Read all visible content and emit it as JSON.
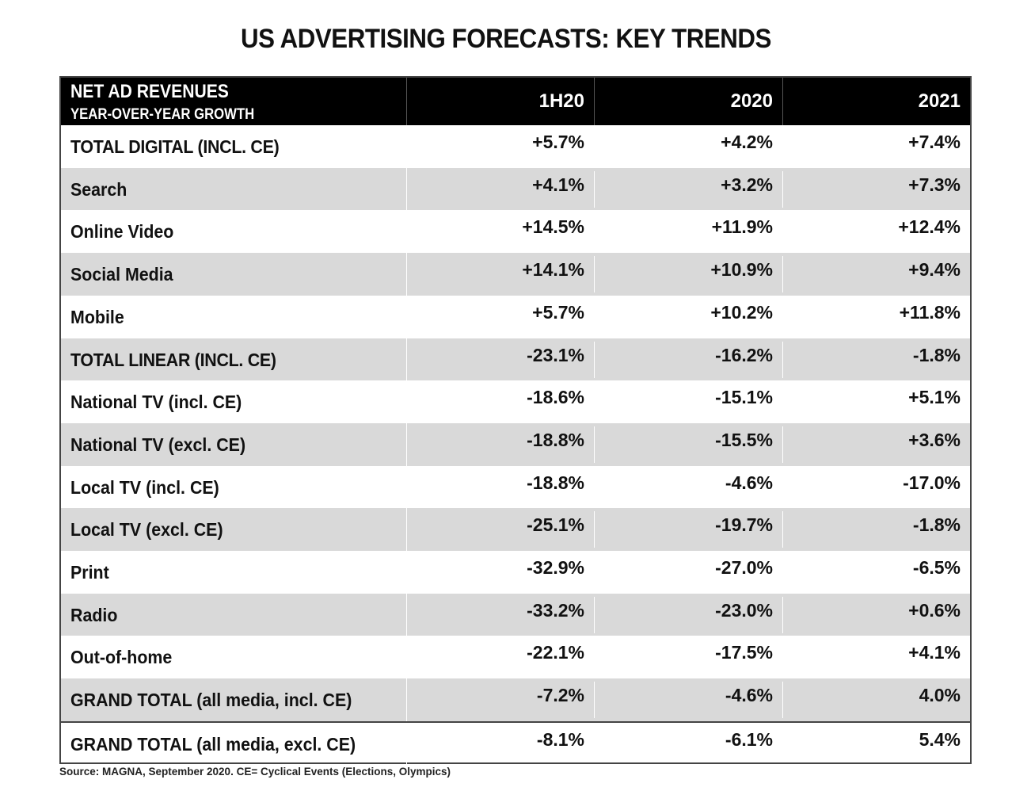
{
  "chart_data": {
    "type": "table",
    "title": "US ADVERTISING FORECASTS: KEY TRENDS",
    "header": {
      "label_line1": "NET AD REVENUES",
      "label_line2": "YEAR-OVER-YEAR GROWTH",
      "columns": [
        "1H20",
        "2020",
        "2021"
      ]
    },
    "rows": [
      {
        "label": "TOTAL DIGITAL (INCL. CE)",
        "values": [
          "+5.7%",
          "+4.2%",
          "+7.4%"
        ],
        "emphasis": true
      },
      {
        "label": "Search",
        "values": [
          "+4.1%",
          "+3.2%",
          "+7.3%"
        ],
        "emphasis": false
      },
      {
        "label": "Online Video",
        "values": [
          "+14.5%",
          "+11.9%",
          "+12.4%"
        ],
        "emphasis": false
      },
      {
        "label": "Social Media",
        "values": [
          "+14.1%",
          "+10.9%",
          "+9.4%"
        ],
        "emphasis": false
      },
      {
        "label": "Mobile",
        "values": [
          "+5.7%",
          "+10.2%",
          "+11.8%"
        ],
        "emphasis": false
      },
      {
        "label": "TOTAL LINEAR (INCL. CE)",
        "values": [
          "-23.1%",
          "-16.2%",
          "-1.8%"
        ],
        "emphasis": true
      },
      {
        "label": "National TV (incl. CE)",
        "values": [
          "-18.6%",
          "-15.1%",
          "+5.1%"
        ],
        "emphasis": false
      },
      {
        "label": "National TV (excl. CE)",
        "values": [
          "-18.8%",
          "-15.5%",
          "+3.6%"
        ],
        "emphasis": false
      },
      {
        "label": "Local TV (incl. CE)",
        "values": [
          "-18.8%",
          "-4.6%",
          "-17.0%"
        ],
        "emphasis": false
      },
      {
        "label": "Local TV (excl. CE)",
        "values": [
          "-25.1%",
          "-19.7%",
          "-1.8%"
        ],
        "emphasis": false
      },
      {
        "label": "Print",
        "values": [
          "-32.9%",
          "-27.0%",
          "-6.5%"
        ],
        "emphasis": false
      },
      {
        "label": "Radio",
        "values": [
          "-33.2%",
          "-23.0%",
          "+0.6%"
        ],
        "emphasis": false
      },
      {
        "label": "Out-of-home",
        "values": [
          "-22.1%",
          "-17.5%",
          "+4.1%"
        ],
        "emphasis": false
      },
      {
        "label": "GRAND TOTAL (all media, incl. CE)",
        "values": [
          "-7.2%",
          "-4.6%",
          "4.0%"
        ],
        "emphasis": false
      },
      {
        "label": "GRAND TOTAL (all media, excl. CE)",
        "values": [
          "-8.1%",
          "-6.1%",
          "5.4%"
        ],
        "emphasis": false
      }
    ],
    "source": "Source: MAGNA, September 2020. CE= Cyclical Events (Elections, Olympics)",
    "colors": {
      "header_bg": "#000000",
      "header_text": "#ffffff",
      "row_alt": "#d9d9d9",
      "row_base": "#ffffff"
    }
  }
}
